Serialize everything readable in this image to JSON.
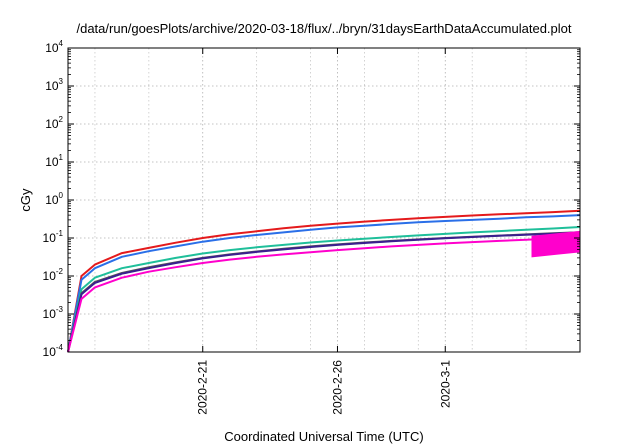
{
  "chart_data": {
    "type": "line",
    "title": "/data/run/goesPlots/archive/2020-03-18/flux/../bryn/31daysEarthDataAccumulated.plot",
    "xlabel": "Coordinated Universal Time (UTC)",
    "ylabel": "cGy",
    "yscale": "log",
    "ylim": [
      0.0001,
      10000
    ],
    "y_ticks": [
      {
        "base": "10",
        "exp": "-4",
        "value": 0.0001
      },
      {
        "base": "10",
        "exp": "-3",
        "value": 0.001
      },
      {
        "base": "10",
        "exp": "-2",
        "value": 0.01
      },
      {
        "base": "10",
        "exp": "-1",
        "value": 0.1
      },
      {
        "base": "10",
        "exp": "0",
        "value": 1
      },
      {
        "base": "10",
        "exp": "1",
        "value": 10
      },
      {
        "base": "10",
        "exp": "2",
        "value": 100
      },
      {
        "base": "10",
        "exp": "3",
        "value": 1000
      },
      {
        "base": "10",
        "exp": "4",
        "value": 10000
      }
    ],
    "xlim": [
      "2020-02-16",
      "2020-03-06"
    ],
    "x_ticks": [
      {
        "label": "2020-2-21",
        "date": "2020-02-21"
      },
      {
        "label": "2020-2-26",
        "date": "2020-02-26"
      },
      {
        "label": "2020-3-1",
        "date": "2020-03-01"
      }
    ],
    "grid": true,
    "x_dates": [
      "2020-02-16",
      "2020-02-16.5",
      "2020-02-17",
      "2020-02-18",
      "2020-02-19",
      "2020-02-20",
      "2020-02-21",
      "2020-02-22",
      "2020-02-23",
      "2020-02-24",
      "2020-02-25",
      "2020-02-26",
      "2020-02-27",
      "2020-02-28",
      "2020-02-29",
      "2020-03-01",
      "2020-03-02",
      "2020-03-03",
      "2020-03-04",
      "2020-03-05",
      "2020-03-06"
    ],
    "series": [
      {
        "color": "#e41a1c",
        "values": [
          0.0001,
          0.01,
          0.02,
          0.04,
          0.055,
          0.075,
          0.1,
          0.125,
          0.15,
          0.18,
          0.21,
          0.24,
          0.27,
          0.3,
          0.33,
          0.36,
          0.39,
          0.42,
          0.45,
          0.48,
          0.52
        ]
      },
      {
        "color": "#2a6fe8",
        "values": [
          0.0001,
          0.008,
          0.016,
          0.032,
          0.045,
          0.06,
          0.08,
          0.1,
          0.12,
          0.14,
          0.165,
          0.19,
          0.21,
          0.235,
          0.26,
          0.28,
          0.3,
          0.32,
          0.35,
          0.37,
          0.4
        ]
      },
      {
        "color": "#1fbf9a",
        "values": [
          0.0001,
          0.0045,
          0.009,
          0.016,
          0.022,
          0.03,
          0.039,
          0.048,
          0.057,
          0.066,
          0.076,
          0.086,
          0.096,
          0.106,
          0.117,
          0.128,
          0.14,
          0.152,
          0.165,
          0.178,
          0.195
        ]
      },
      {
        "color": "#555555",
        "values": [
          0.0001,
          0.0035,
          0.007,
          0.012,
          0.017,
          0.023,
          0.03,
          0.037,
          0.044,
          0.052,
          0.06,
          0.068,
          0.076,
          0.084,
          0.092,
          0.1,
          0.108,
          0.116,
          0.124,
          0.133,
          0.142
        ]
      },
      {
        "color": "#3a1f8f",
        "values": [
          0.0001,
          0.0033,
          0.0066,
          0.0115,
          0.016,
          0.022,
          0.029,
          0.036,
          0.043,
          0.05,
          0.058,
          0.066,
          0.074,
          0.082,
          0.09,
          0.098,
          0.106,
          0.114,
          0.122,
          0.13,
          0.14
        ]
      },
      {
        "color": "#ff00cc",
        "values": [
          0.0001,
          0.0025,
          0.005,
          0.009,
          0.013,
          0.017,
          0.022,
          0.027,
          0.032,
          0.037,
          0.042,
          0.048,
          0.054,
          0.06,
          0.066,
          0.072,
          0.078,
          0.084,
          0.09,
          0.097,
          0.105
        ]
      }
    ]
  }
}
